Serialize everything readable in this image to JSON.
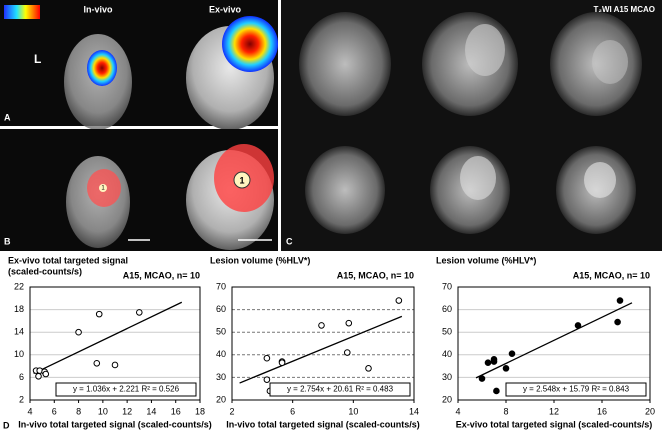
{
  "figure": {
    "panels": [
      "A",
      "B",
      "C",
      "D"
    ],
    "side_label": "L",
    "in_vivo": "In-vivo",
    "ex_vivo": "Ex-vivo",
    "mri_label": "T₂WI   A15   MCAO",
    "roi": [
      "1",
      "1"
    ]
  },
  "chart_data": [
    {
      "type": "scatter",
      "ylabel": [
        "Ex-vivo total targeted signal",
        "(scaled-counts/s)"
      ],
      "subtitle": "A15, MCAO, n= 10",
      "xlabel": "In-vivo total targeted signal  (scaled-counts/s)",
      "marker": "open",
      "grid": true,
      "grid_style": "solid",
      "color": "#000000",
      "x": [
        4.5,
        4.7,
        4.8,
        5.2,
        5.3,
        8,
        9.5,
        9.7,
        11,
        13
      ],
      "y": [
        7.2,
        6.2,
        7.2,
        7,
        6.6,
        14,
        8.5,
        17.2,
        8.2,
        17.5
      ],
      "trendline": {
        "x": [
          4.3,
          16.5
        ],
        "y": [
          6.7,
          19.3
        ]
      },
      "equation": "y = 1.036x + 2.221 R² = 0.526",
      "xlim": [
        4,
        18
      ],
      "xticks": [
        4,
        6,
        8,
        10,
        12,
        14,
        16,
        18
      ],
      "ylim": [
        2,
        22
      ],
      "yticks": [
        2,
        6,
        10,
        14,
        18,
        22
      ]
    },
    {
      "type": "scatter",
      "ylabel": [
        "Lesion volume (%HLV*)"
      ],
      "subtitle": "A15, MCAO, n= 10",
      "xlabel": "In-vivo total targeted signal  (scaled-counts/s)",
      "marker": "open",
      "grid": true,
      "grid_style": "dashed",
      "color": "#000000",
      "x": [
        4.3,
        4.3,
        4.5,
        5.3,
        5.3,
        7.9,
        9.6,
        9.7,
        11,
        13
      ],
      "y": [
        38.5,
        29,
        24,
        37,
        36.5,
        53,
        41,
        54,
        34,
        64
      ],
      "trendline": {
        "x": [
          2.5,
          13.2
        ],
        "y": [
          27.5,
          57
        ]
      },
      "equation": "y = 2.754x + 20.61  R² = 0.483",
      "xlim": [
        2,
        14
      ],
      "xticks": [
        2,
        6,
        10,
        14
      ],
      "ylim": [
        20,
        70
      ],
      "yticks": [
        20,
        30,
        40,
        50,
        60,
        70
      ]
    },
    {
      "type": "scatter",
      "ylabel": [
        "Lesion volume (%HLV*)"
      ],
      "subtitle": "A15, MCAO, n= 10",
      "xlabel": "Ex-vivo total targeted signal  (scaled-counts/s)",
      "marker": "filled",
      "grid": true,
      "grid_style": "solid",
      "color": "#000000",
      "x": [
        6,
        6.5,
        7,
        7,
        7.2,
        8,
        8.5,
        14,
        17.3,
        17.5
      ],
      "y": [
        29.5,
        36.5,
        38,
        37,
        24,
        34,
        40.5,
        53,
        54.5,
        64
      ],
      "trendline": {
        "x": [
          5.5,
          18.5
        ],
        "y": [
          29.8,
          63
        ]
      },
      "equation": "y = 2.548x + 15.79  R² = 0.843",
      "xlim": [
        4,
        20
      ],
      "xticks": [
        4,
        8,
        12,
        16,
        20
      ],
      "ylim": [
        20,
        70
      ],
      "yticks": [
        20,
        30,
        40,
        50,
        60,
        70
      ]
    }
  ]
}
